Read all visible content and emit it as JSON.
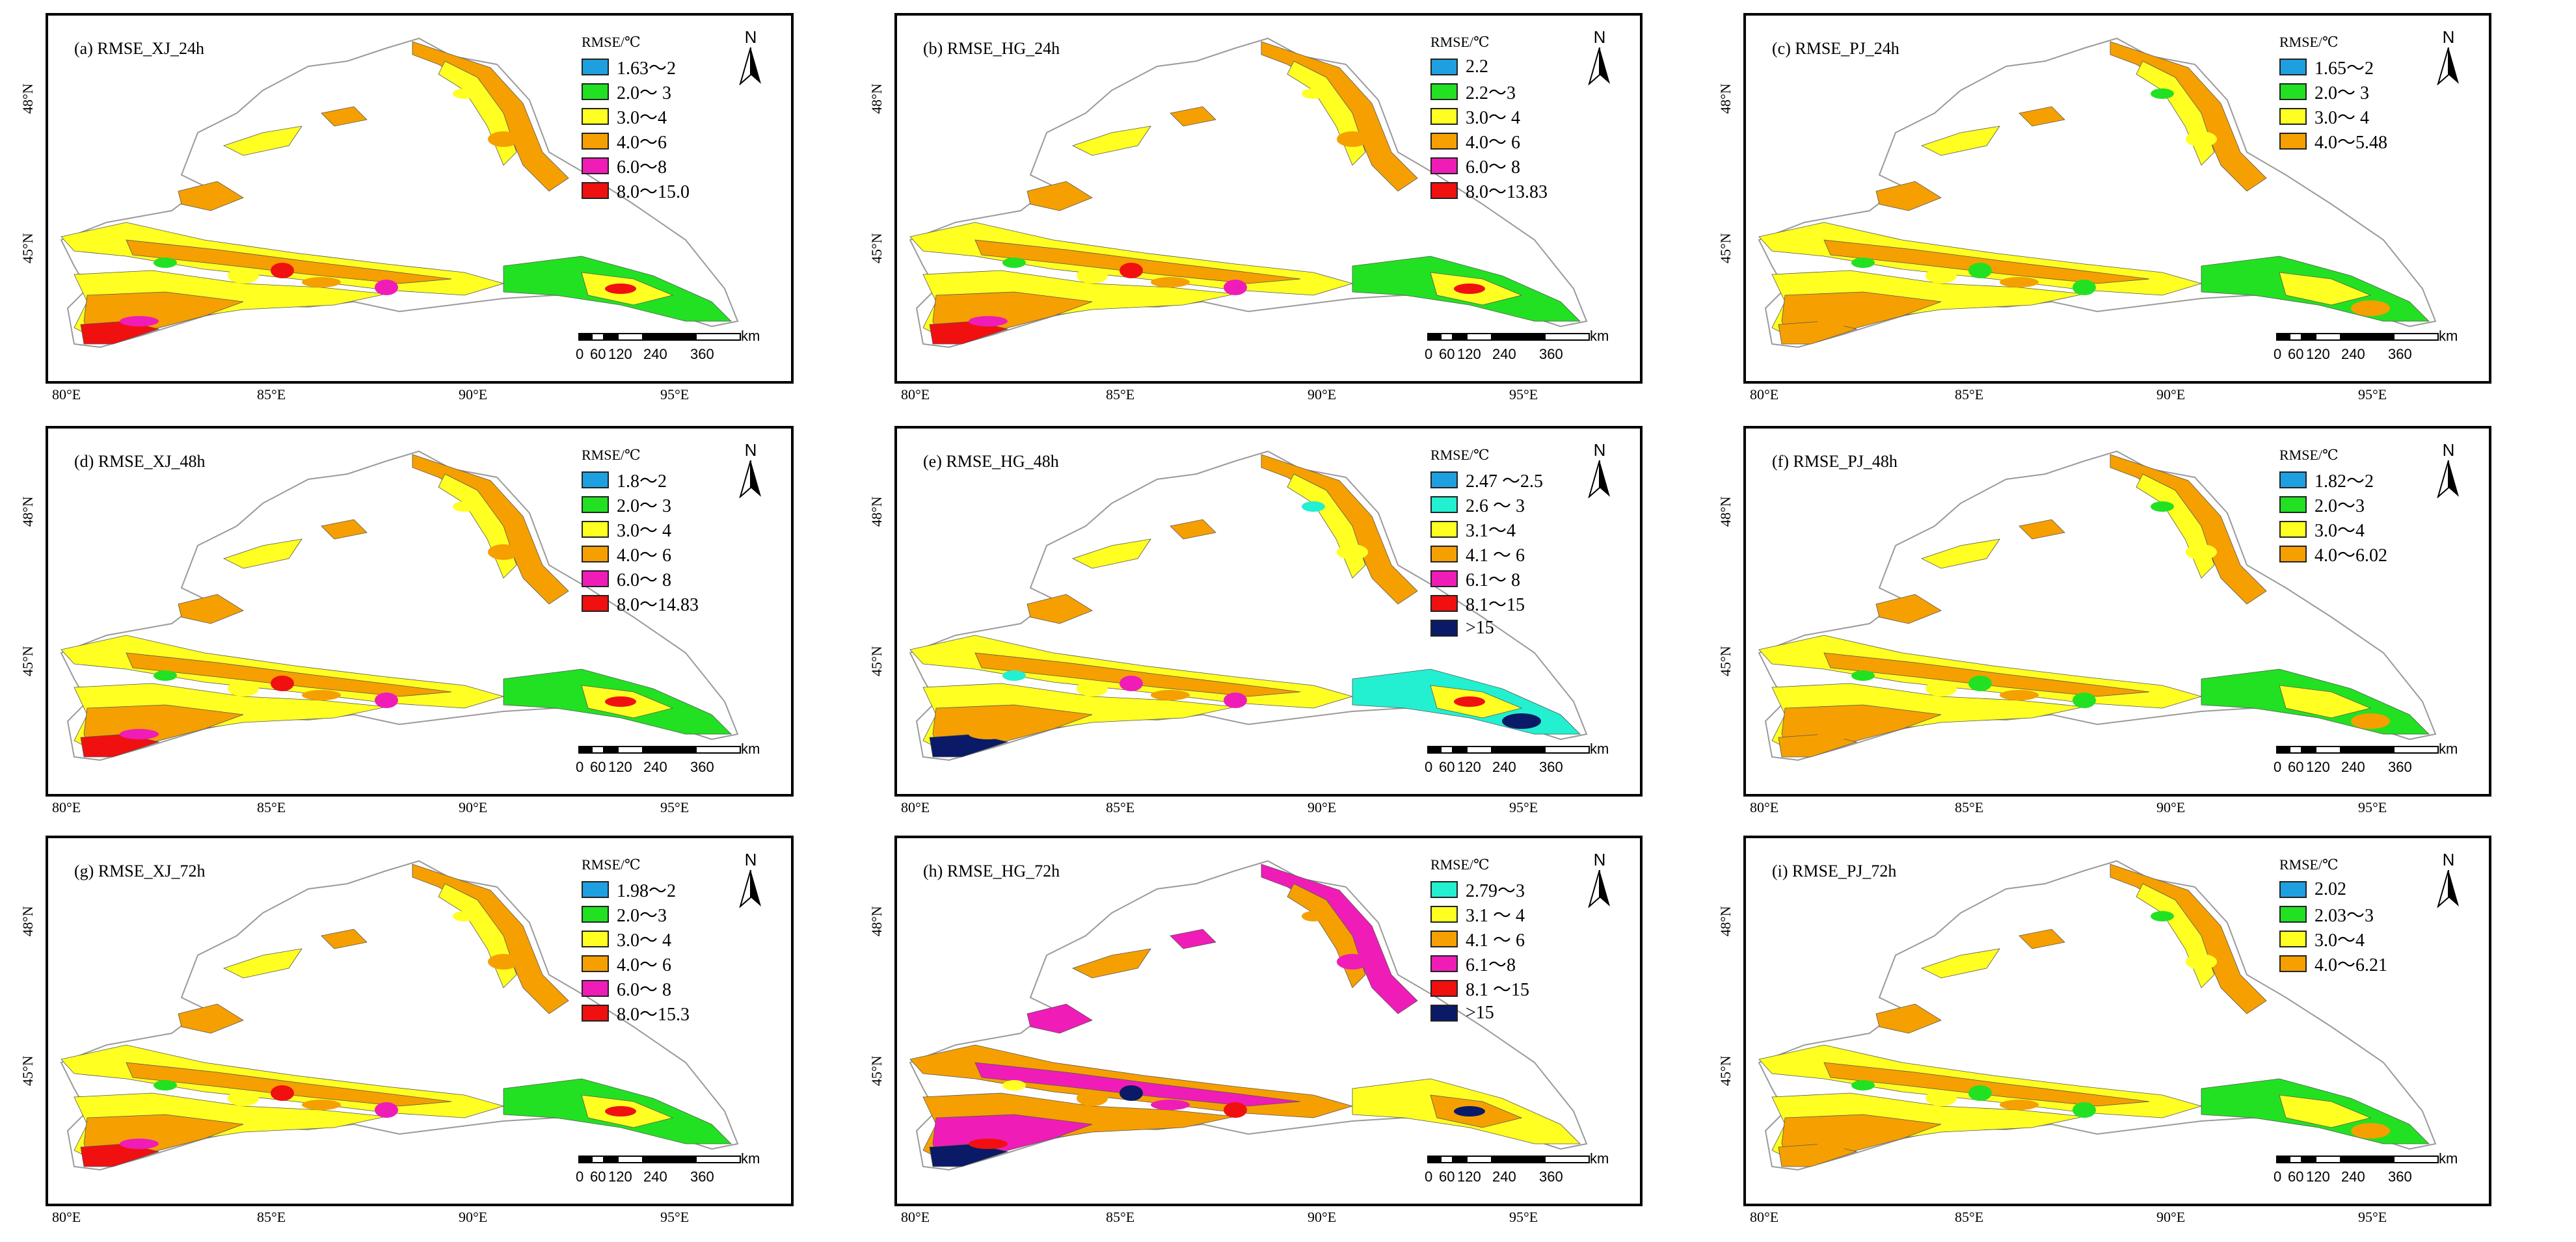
{
  "north_label": "N",
  "scale_ticks": [
    "0",
    "60",
    "120",
    "240",
    "360"
  ],
  "scale_unit": "km",
  "lon_labels": [
    "80°E",
    "85°E",
    "90°E",
    "95°E"
  ],
  "lat_labels": [
    "48°N",
    "45°N"
  ],
  "panels": [
    {
      "title": "(a)  RMSE_XJ_24h",
      "legend_title": "RMSE/℃",
      "legend": [
        {
          "label": "1.63～2",
          "color": "#1ea0e0"
        },
        {
          "label": "2.0～ 3",
          "color": "#22e122"
        },
        {
          "label": "3.0～4",
          "color": "#ffff22"
        },
        {
          "label": "4.0～6",
          "color": "#f5a000"
        },
        {
          "label": "6.0～8",
          "color": "#f01cb8"
        },
        {
          "label": "8.0～15.0",
          "color": "#f01010"
        }
      ]
    },
    {
      "title": "(b)  RMSE_HG_24h",
      "legend_title": "RMSE/℃",
      "legend": [
        {
          "label": "2.2",
          "color": "#1ea0e0"
        },
        {
          "label": "2.2～3",
          "color": "#22e122"
        },
        {
          "label": "3.0～ 4",
          "color": "#ffff22"
        },
        {
          "label": "4.0～ 6",
          "color": "#f5a000"
        },
        {
          "label": "6.0～ 8",
          "color": "#f01cb8"
        },
        {
          "label": "8.0～13.83",
          "color": "#f01010"
        }
      ]
    },
    {
      "title": "(c)  RMSE_PJ_24h",
      "legend_title": "RMSE/℃",
      "legend": [
        {
          "label": "1.65～2",
          "color": "#1ea0e0"
        },
        {
          "label": "2.0～ 3",
          "color": "#22e122"
        },
        {
          "label": "3.0～ 4",
          "color": "#ffff22"
        },
        {
          "label": "4.0～5.48",
          "color": "#f5a000"
        }
      ]
    },
    {
      "title": "(d)  RMSE_XJ_48h",
      "legend_title": "RMSE/℃",
      "legend": [
        {
          "label": "1.8～2",
          "color": "#1ea0e0"
        },
        {
          "label": "2.0～ 3",
          "color": "#22e122"
        },
        {
          "label": "3.0～ 4",
          "color": "#ffff22"
        },
        {
          "label": "4.0～ 6",
          "color": "#f5a000"
        },
        {
          "label": "6.0～ 8",
          "color": "#f01cb8"
        },
        {
          "label": "8.0～14.83",
          "color": "#f01010"
        }
      ]
    },
    {
      "title": "(e)  RMSE_HG_48h",
      "legend_title": "RMSE/℃",
      "legend": [
        {
          "label": "2.47 ～2.5",
          "color": "#1ea0e0"
        },
        {
          "label": "2.6 ～ 3",
          "color": "#22f0d0"
        },
        {
          "label": "3.1～4",
          "color": "#ffff22"
        },
        {
          "label": "4.1 ～ 6",
          "color": "#f5a000"
        },
        {
          "label": "6.1～ 8",
          "color": "#f01cb8"
        },
        {
          "label": "8.1～15",
          "color": "#f01010"
        },
        {
          "label": ">15",
          "color": "#0a1a66"
        }
      ]
    },
    {
      "title": "(f)  RMSE_PJ_48h",
      "legend_title": "RMSE/℃",
      "legend": [
        {
          "label": "1.82～2",
          "color": "#1ea0e0"
        },
        {
          "label": "2.0～3",
          "color": "#22e122"
        },
        {
          "label": "3.0～4",
          "color": "#ffff22"
        },
        {
          "label": "4.0～6.02",
          "color": "#f5a000"
        }
      ]
    },
    {
      "title": "(g)  RMSE_XJ_72h",
      "legend_title": "RMSE/℃",
      "legend": [
        {
          "label": "1.98～2",
          "color": "#1ea0e0"
        },
        {
          "label": "2.0～3",
          "color": "#22e122"
        },
        {
          "label": "3.0～ 4",
          "color": "#ffff22"
        },
        {
          "label": "4.0～ 6",
          "color": "#f5a000"
        },
        {
          "label": "6.0～ 8",
          "color": "#f01cb8"
        },
        {
          "label": "8.0～15.3",
          "color": "#f01010"
        }
      ]
    },
    {
      "title": "(h)  RMSE_HG_72h",
      "legend_title": "RMSE/℃",
      "legend": [
        {
          "label": "2.79～3",
          "color": "#22f0d0"
        },
        {
          "label": "3.1 ～ 4",
          "color": "#ffff22"
        },
        {
          "label": "4.1 ～ 6",
          "color": "#f5a000"
        },
        {
          "label": "6.1～8",
          "color": "#f01cb8"
        },
        {
          "label": "8.1 ～15",
          "color": "#f01010"
        },
        {
          "label": ">15",
          "color": "#0a1a66"
        }
      ]
    },
    {
      "title": "(i)  RMSE_PJ_72h",
      "legend_title": "RMSE/℃",
      "legend": [
        {
          "label": "2.02",
          "color": "#1ea0e0"
        },
        {
          "label": "2.03～3",
          "color": "#22e122"
        },
        {
          "label": "3.0～4",
          "color": "#ffff22"
        },
        {
          "label": "4.0～6.21",
          "color": "#f5a000"
        }
      ]
    }
  ]
}
